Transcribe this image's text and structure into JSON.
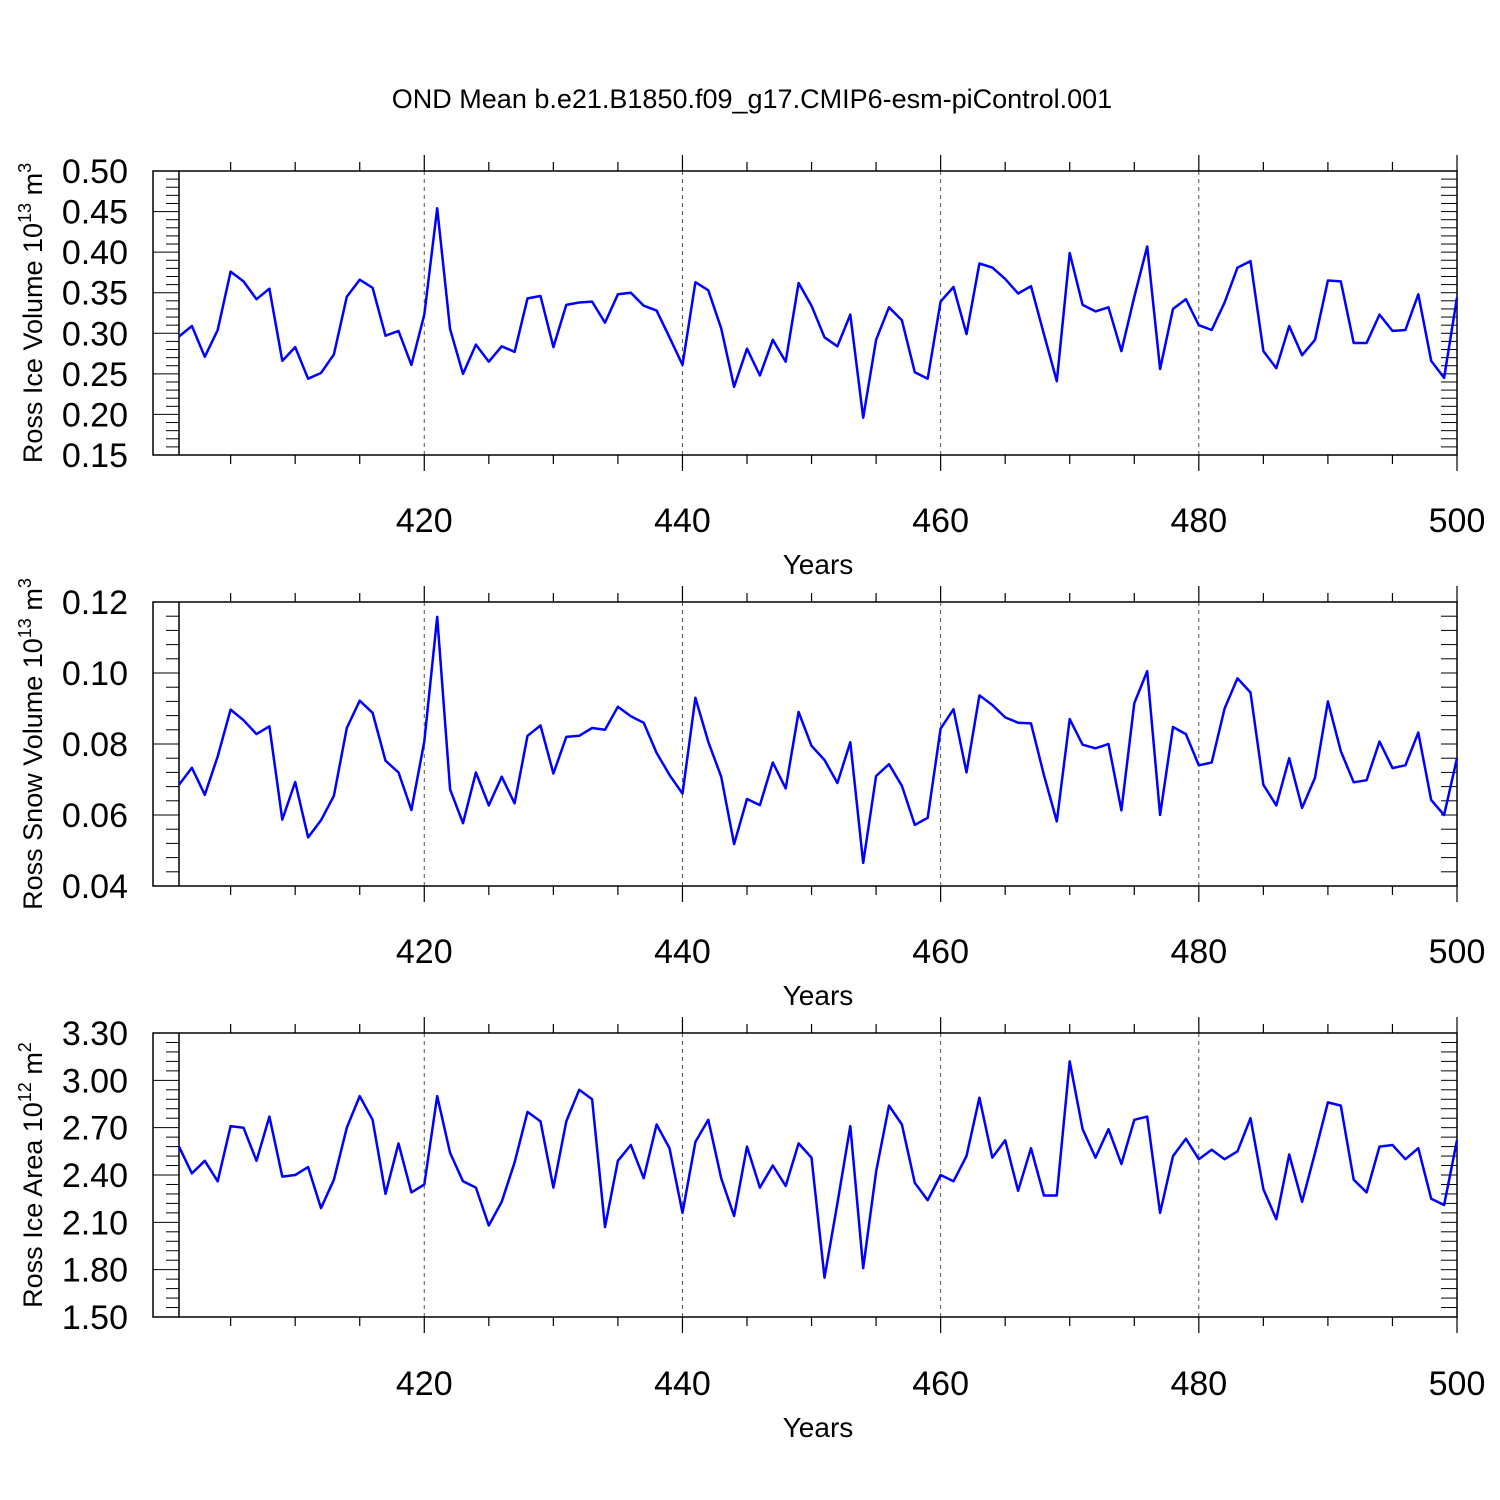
{
  "title": "OND Mean b.e21.B1850.f09_g17.CMIP6-esm-piControl.001",
  "line_color": "#0000ff",
  "chart_data": [
    {
      "type": "line",
      "xlabel": "Years",
      "ylabel_main": "Ross Ice Volume 10",
      "ylabel_exp": "13",
      "ylabel_unit": " m",
      "ylabel_unit_exp": "3",
      "xlim": [
        401,
        500
      ],
      "ylim": [
        0.15,
        0.5
      ],
      "xticks": [
        420,
        440,
        460,
        480,
        500
      ],
      "xtick_labels": [
        "420",
        "440",
        "460",
        "480",
        "500"
      ],
      "yticks": [
        0.15,
        0.2,
        0.25,
        0.3,
        0.35,
        0.4,
        0.45,
        0.5
      ],
      "ytick_labels": [
        "0.15",
        "0.20",
        "0.25",
        "0.30",
        "0.35",
        "0.40",
        "0.45",
        "0.50"
      ],
      "series": [
        {
          "name": "Ross Ice Volume",
          "x_start": 401,
          "values": [
            0.296,
            0.309,
            0.271,
            0.304,
            0.376,
            0.364,
            0.342,
            0.355,
            0.266,
            0.283,
            0.244,
            0.251,
            0.274,
            0.345,
            0.366,
            0.356,
            0.297,
            0.303,
            0.261,
            0.323,
            0.454,
            0.305,
            0.25,
            0.286,
            0.265,
            0.284,
            0.277,
            0.343,
            0.346,
            0.283,
            0.335,
            0.338,
            0.339,
            0.313,
            0.348,
            0.35,
            0.334,
            0.328,
            0.295,
            0.261,
            0.363,
            0.353,
            0.306,
            0.234,
            0.281,
            0.248,
            0.292,
            0.265,
            0.362,
            0.334,
            0.295,
            0.284,
            0.323,
            0.196,
            0.292,
            0.332,
            0.316,
            0.252,
            0.244,
            0.339,
            0.357,
            0.299,
            0.386,
            0.381,
            0.367,
            0.349,
            0.358,
            0.299,
            0.241,
            0.399,
            0.335,
            0.327,
            0.332,
            0.278,
            0.345,
            0.407,
            0.256,
            0.33,
            0.342,
            0.31,
            0.304,
            0.338,
            0.381,
            0.389,
            0.278,
            0.257,
            0.309,
            0.273,
            0.292,
            0.365,
            0.364,
            0.288,
            0.288,
            0.323,
            0.303,
            0.304,
            0.348,
            0.266,
            0.245,
            0.344
          ]
        }
      ]
    },
    {
      "type": "line",
      "xlabel": "Years",
      "ylabel_main": "Ross Snow Volume 10",
      "ylabel_exp": "13",
      "ylabel_unit": " m",
      "ylabel_unit_exp": "3",
      "xlim": [
        401,
        500
      ],
      "ylim": [
        0.04,
        0.12
      ],
      "xticks": [
        420,
        440,
        460,
        480,
        500
      ],
      "xtick_labels": [
        "420",
        "440",
        "460",
        "480",
        "500"
      ],
      "yticks": [
        0.04,
        0.06,
        0.08,
        0.1,
        0.12
      ],
      "ytick_labels": [
        "0.04",
        "0.06",
        "0.08",
        "0.10",
        "0.12"
      ],
      "series": [
        {
          "name": "Ross Snow Volume",
          "x_start": 401,
          "values": [
            0.0685,
            0.0733,
            0.0657,
            0.0765,
            0.0897,
            0.0867,
            0.0828,
            0.085,
            0.0587,
            0.0693,
            0.0537,
            0.0585,
            0.0654,
            0.0845,
            0.0922,
            0.0888,
            0.0753,
            0.072,
            0.0614,
            0.0807,
            0.1158,
            0.0672,
            0.0577,
            0.072,
            0.0627,
            0.0708,
            0.0633,
            0.0823,
            0.0852,
            0.0717,
            0.082,
            0.0823,
            0.0845,
            0.084,
            0.0905,
            0.0878,
            0.086,
            0.0775,
            0.0713,
            0.066,
            0.093,
            0.0806,
            0.0708,
            0.0518,
            0.0645,
            0.0628,
            0.0748,
            0.0675,
            0.089,
            0.0795,
            0.0755,
            0.069,
            0.0805,
            0.0465,
            0.071,
            0.0743,
            0.0682,
            0.0572,
            0.0592,
            0.0843,
            0.0898,
            0.072,
            0.0937,
            0.091,
            0.0875,
            0.086,
            0.0858,
            0.0713,
            0.0582,
            0.087,
            0.0798,
            0.0788,
            0.08,
            0.0613,
            0.0915,
            0.1005,
            0.06,
            0.0848,
            0.0828,
            0.074,
            0.0748,
            0.09,
            0.0985,
            0.0945,
            0.0685,
            0.0627,
            0.076,
            0.062,
            0.0705,
            0.092,
            0.078,
            0.0692,
            0.0698,
            0.0807,
            0.0732,
            0.074,
            0.0832,
            0.0642,
            0.06,
            0.076
          ]
        }
      ]
    },
    {
      "type": "line",
      "xlabel": "Years",
      "ylabel_main": "Ross Ice Area 10",
      "ylabel_exp": "12",
      "ylabel_unit": " m",
      "ylabel_unit_exp": "2",
      "xlim": [
        401,
        500
      ],
      "ylim": [
        1.5,
        3.3
      ],
      "xticks": [
        420,
        440,
        460,
        480,
        500
      ],
      "xtick_labels": [
        "420",
        "440",
        "460",
        "480",
        "500"
      ],
      "yticks": [
        1.5,
        1.8,
        2.1,
        2.4,
        2.7,
        3.0,
        3.3
      ],
      "ytick_labels": [
        "1.50",
        "1.80",
        "2.10",
        "2.40",
        "2.70",
        "3.00",
        "3.30"
      ],
      "series": [
        {
          "name": "Ross Ice Area",
          "x_start": 401,
          "values": [
            2.58,
            2.41,
            2.49,
            2.36,
            2.71,
            2.7,
            2.49,
            2.77,
            2.39,
            2.4,
            2.45,
            2.19,
            2.37,
            2.7,
            2.9,
            2.75,
            2.28,
            2.6,
            2.29,
            2.34,
            2.9,
            2.54,
            2.36,
            2.32,
            2.08,
            2.23,
            2.48,
            2.8,
            2.74,
            2.32,
            2.74,
            2.94,
            2.88,
            2.07,
            2.49,
            2.59,
            2.38,
            2.72,
            2.57,
            2.16,
            2.61,
            2.75,
            2.38,
            2.14,
            2.58,
            2.32,
            2.46,
            2.33,
            2.6,
            2.51,
            1.75,
            2.22,
            2.71,
            1.81,
            2.42,
            2.84,
            2.72,
            2.35,
            2.24,
            2.4,
            2.36,
            2.52,
            2.89,
            2.51,
            2.62,
            2.3,
            2.57,
            2.27,
            2.27,
            3.12,
            2.69,
            2.51,
            2.69,
            2.47,
            2.75,
            2.77,
            2.16,
            2.52,
            2.63,
            2.5,
            2.56,
            2.5,
            2.55,
            2.76,
            2.31,
            2.12,
            2.53,
            2.23,
            2.54,
            2.86,
            2.84,
            2.37,
            2.29,
            2.58,
            2.59,
            2.5,
            2.57,
            2.25,
            2.21,
            2.62
          ]
        }
      ]
    }
  ]
}
